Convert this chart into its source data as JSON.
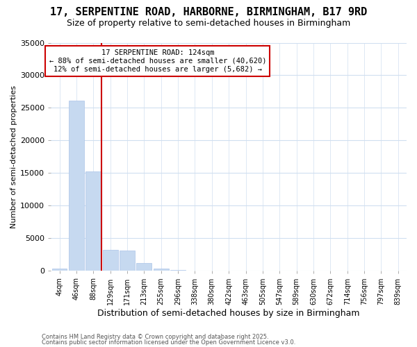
{
  "title_line1": "17, SERPENTINE ROAD, HARBORNE, BIRMINGHAM, B17 9RD",
  "title_line2": "Size of property relative to semi-detached houses in Birmingham",
  "xlabel": "Distribution of semi-detached houses by size in Birmingham",
  "ylabel": "Number of semi-detached properties",
  "categories": [
    "4sqm",
    "46sqm",
    "88sqm",
    "129sqm",
    "171sqm",
    "213sqm",
    "255sqm",
    "296sqm",
    "338sqm",
    "380sqm",
    "422sqm",
    "463sqm",
    "505sqm",
    "547sqm",
    "589sqm",
    "630sqm",
    "672sqm",
    "714sqm",
    "756sqm",
    "797sqm",
    "839sqm"
  ],
  "values": [
    350,
    26100,
    15300,
    3200,
    3100,
    1200,
    400,
    200,
    0,
    0,
    0,
    0,
    0,
    0,
    0,
    0,
    0,
    0,
    0,
    0,
    0
  ],
  "bar_color": "#c6d9f0",
  "bar_edge_color": "#aac4e8",
  "property_line_x": 2.5,
  "annotation_text_line1": "17 SERPENTINE ROAD: 124sqm",
  "annotation_text_line2": "← 88% of semi-detached houses are smaller (40,620)",
  "annotation_text_line3": "12% of semi-detached houses are larger (5,682) →",
  "ylim": [
    0,
    35000
  ],
  "yticks": [
    0,
    5000,
    10000,
    15000,
    20000,
    25000,
    30000,
    35000
  ],
  "red_line_color": "#cc0000",
  "annotation_box_edge": "#cc0000",
  "footer_line1": "Contains HM Land Registry data © Crown copyright and database right 2025.",
  "footer_line2": "Contains public sector information licensed under the Open Government Licence v3.0.",
  "bg_color": "#ffffff",
  "grid_color": "#d0dff0",
  "title1_fontsize": 11,
  "title2_fontsize": 9
}
